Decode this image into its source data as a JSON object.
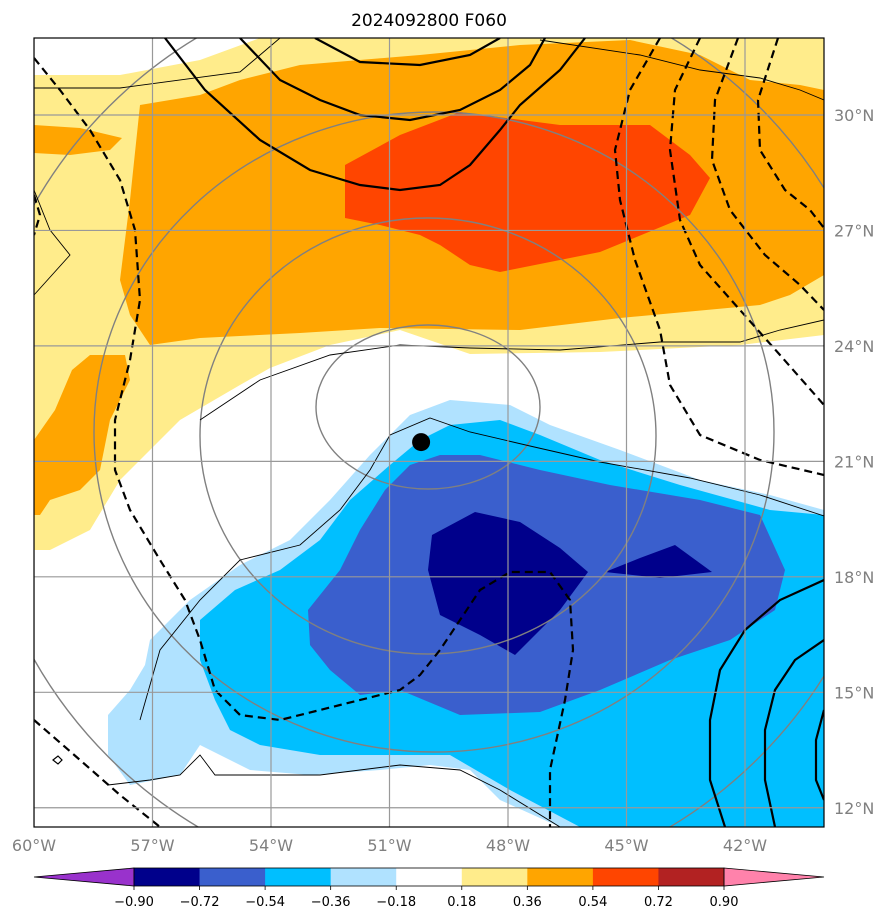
{
  "chart_data": {
    "type": "contour-map",
    "title": "2024092800 F060",
    "xlim": [
      -60,
      -40
    ],
    "ylim": [
      11.5,
      32
    ],
    "lon_ticks": [
      -60,
      -57,
      -54,
      -51,
      -48,
      -45,
      -42
    ],
    "lon_tick_labels": [
      "60°W",
      "57°W",
      "54°W",
      "51°W",
      "48°W",
      "45°W",
      "42°W"
    ],
    "lat_ticks": [
      12,
      15,
      18,
      21,
      24,
      27,
      30
    ],
    "lat_tick_labels": [
      "12°N",
      "15°N",
      "18°N",
      "21°N",
      "24°N",
      "27°N",
      "30°N"
    ],
    "grid": true,
    "storm_center": {
      "lon": -50.2,
      "lat": 21.5
    },
    "colorbar": {
      "orientation": "horizontal",
      "extend": "both",
      "levels": [
        -0.9,
        -0.72,
        -0.54,
        -0.36,
        -0.18,
        0.18,
        0.36,
        0.54,
        0.72,
        0.9
      ],
      "tick_labels": [
        "−0.90",
        "−0.72",
        "−0.54",
        "−0.36",
        "−0.18",
        "0.18",
        "0.36",
        "0.54",
        "0.72",
        "0.90"
      ],
      "colors": [
        "#9932CC",
        "#00008B",
        "#3A5FCD",
        "#00BFFF",
        "#B0E2FF",
        "#FFFFFF",
        "#FFEC8B",
        "#FFA500",
        "#FF4500",
        "#B22222",
        "#FF82AB"
      ]
    }
  }
}
